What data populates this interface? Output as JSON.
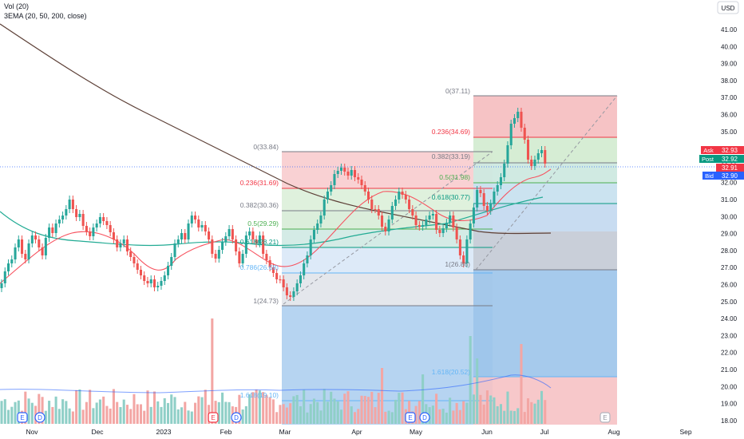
{
  "indicators": {
    "volume_label": "Vol (20)",
    "ema_label": "3EMA (20, 50, 200, close)"
  },
  "currency_button": "USD",
  "price_axis": {
    "ticks": [
      "41.00",
      "40.00",
      "39.00",
      "38.00",
      "37.00",
      "36.00",
      "35.00",
      "34.00",
      "33.00",
      "32.00",
      "31.00",
      "30.00",
      "29.00",
      "28.00",
      "27.00",
      "26.00",
      "25.00",
      "24.00",
      "23.00",
      "22.00",
      "21.00",
      "20.00",
      "19.00",
      "18.00"
    ],
    "ask": {
      "label": "Ask",
      "value": "32.93"
    },
    "last": {
      "label": "Post",
      "value": "32.92"
    },
    "mid": {
      "value": "32.91"
    },
    "bid": {
      "label": "Bid",
      "value": "32.90"
    }
  },
  "time_axis": {
    "ticks": [
      "Nov",
      "Dec",
      "2023",
      "Feb",
      "Mar",
      "Apr",
      "May",
      "Jun",
      "Jul",
      "Aug",
      "Sep"
    ]
  },
  "fib_1": {
    "levels": [
      {
        "label": "0(33.84)",
        "color": "#787b86"
      },
      {
        "label": "0.236(31.69)",
        "color": "#f23645"
      },
      {
        "label": "0.382(30.36)",
        "color": "#787b86"
      },
      {
        "label": "0.5(29.29)",
        "color": "#4caf50"
      },
      {
        "label": "0.618(28.21)",
        "color": "#089981"
      },
      {
        "label": "0.786(26.68)",
        "color": "#64b5f6"
      },
      {
        "label": "1(24.73)",
        "color": "#787b86"
      },
      {
        "label": "1.618(19.10)",
        "color": "#64b5f6"
      }
    ]
  },
  "fib_2": {
    "levels": [
      {
        "label": "0(37.11)",
        "color": "#787b86"
      },
      {
        "label": "0.236(34.69)",
        "color": "#f23645"
      },
      {
        "label": "0.382(33.19)",
        "color": "#787b86"
      },
      {
        "label": "0.5(31.98)",
        "color": "#4caf50"
      },
      {
        "label": "0.618(30.77)",
        "color": "#089981"
      },
      {
        "label": "1(26.86)",
        "color": "#787b86"
      },
      {
        "label": "1.618(20.52)",
        "color": "#64b5f6"
      }
    ]
  },
  "event_markers": [
    {
      "letter": "E",
      "kind": "earnings"
    },
    {
      "letter": "D",
      "kind": "dividend"
    },
    {
      "letter": "E",
      "kind": "earnings"
    },
    {
      "letter": "D",
      "kind": "dividend"
    },
    {
      "letter": "E",
      "kind": "earnings"
    },
    {
      "letter": "D",
      "kind": "dividend"
    },
    {
      "letter": "E",
      "kind": "earnings-upcoming"
    }
  ],
  "colors": {
    "up": "#26a69a",
    "down": "#ef5350",
    "ema20": "#f7525f",
    "ema50": "#22ab94",
    "ema200": "#5d4037"
  }
}
